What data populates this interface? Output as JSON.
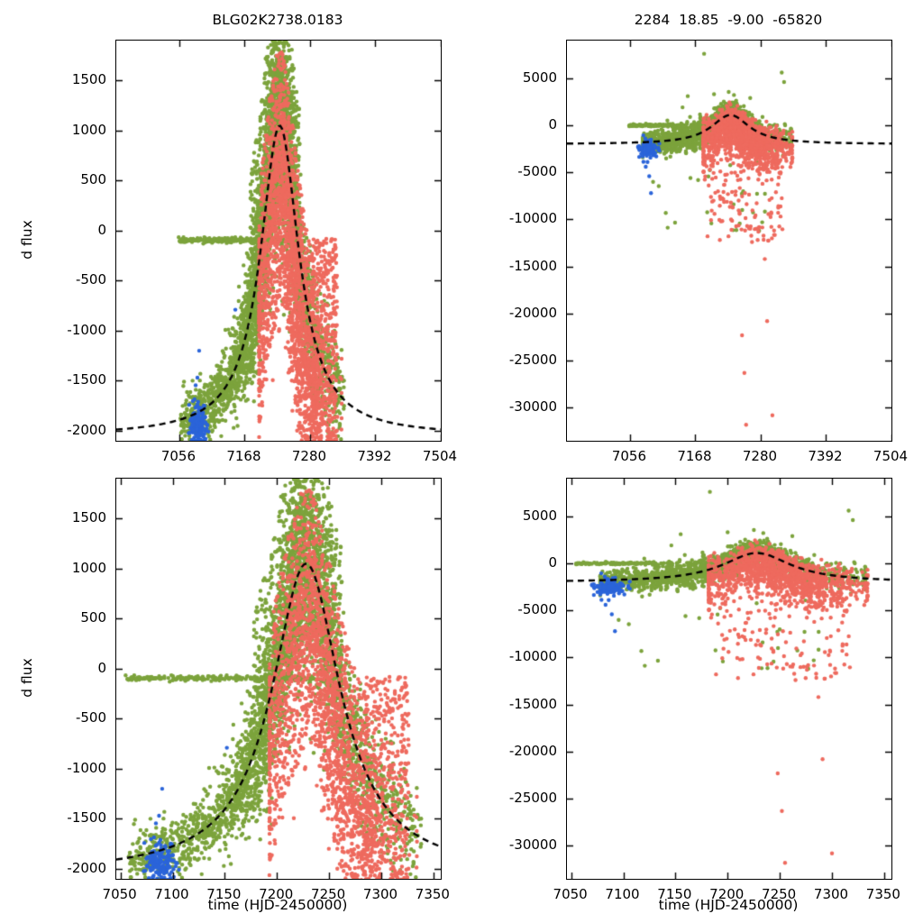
{
  "chart_data": {
    "type": "scatter",
    "titles": {
      "left": "BLG02K2738.0183",
      "right": "2284  18.85  -9.00  -65820"
    },
    "xlabel": "time (HJD-2450000)",
    "ylabel": "d flux",
    "colors": {
      "green": "#7ca33c",
      "red": "#ee6a5e",
      "blue": "#2b64d9",
      "model": "#000000",
      "background": "#ffffff"
    },
    "legend": "none",
    "grid": false,
    "model_curve_style": "black dashed Paczynski-like bump",
    "datasets": {
      "left": {
        "model": {
          "base": -2050,
          "amp": 3100,
          "t0": 7228,
          "w": 40
        },
        "groups": [
          {
            "name": "green-rise",
            "color": "green",
            "n": 450,
            "nights": true,
            "x": {
              "type": "uniform",
              "a": 7058,
              "b": 7176
            },
            "y": {
              "mode": "model",
              "sigma": 130
            }
          },
          {
            "name": "green-peak",
            "color": "green",
            "n": 2400,
            "nights": true,
            "x": {
              "type": "gauss",
              "mu": 7215,
              "sigma": 38,
              "clip": [
                7100,
                7338
              ]
            },
            "y": {
              "mode": "model",
              "sigma": 150,
              "sigma_peak": 420
            }
          },
          {
            "name": "green-columns",
            "color": "green",
            "n": 800,
            "nights": true,
            "x": {
              "type": "uniform",
              "a": 7178,
              "b": 7262
            },
            "y": {
              "mode": "model_uniform",
              "lo": -770,
              "hi": 1430
            }
          },
          {
            "name": "green-late",
            "color": "green",
            "n": 260,
            "nights": true,
            "x": {
              "type": "uniform",
              "a": 7262,
              "b": 7336
            },
            "y": {
              "mode": "model",
              "sigma": 330
            }
          },
          {
            "name": "green-flat-band",
            "color": "green",
            "n": 230,
            "nights": true,
            "x": {
              "type": "uniform",
              "a": 7055,
              "b": 7236
            },
            "y": {
              "mode": "band",
              "c": -95,
              "sigma": 12
            }
          },
          {
            "name": "red-main",
            "color": "red",
            "n": 1500,
            "nights": true,
            "x": {
              "type": "gauss",
              "mu": 7245,
              "sigma": 35,
              "clip": [
                7193,
                7334
              ]
            },
            "y": {
              "mode": "model",
              "sigma": 300,
              "skew": 750
            }
          },
          {
            "name": "red-columns",
            "color": "red",
            "n": 700,
            "nights": true,
            "x": {
              "type": "uniform",
              "a": 7196,
              "b": 7292
            },
            "y": {
              "mode": "model_uniform",
              "lo": -1850,
              "hi": 760
            }
          },
          {
            "name": "red-late-streaks",
            "color": "red",
            "n": 420,
            "nights": true,
            "x": {
              "type": "uniform",
              "a": 7282,
              "b": 7326
            },
            "y": {
              "mode": "uniform",
              "a": -2120,
              "b": -80
            }
          },
          {
            "name": "blue-cluster",
            "color": "blue",
            "n": 170,
            "nights": true,
            "x": {
              "type": "gauss",
              "mu": 7087,
              "sigma": 8,
              "clip": [
                7070,
                7107
              ]
            },
            "y": {
              "mode": "band",
              "c": -1925,
              "sigma": 95
            }
          },
          {
            "name": "blue-strays",
            "color": "blue",
            "y": {
              "mode": "points"
            },
            "pts": [
              [
                7084,
                -1545
              ],
              [
                7087,
                -1470
              ],
              [
                7152,
                -790
              ],
              [
                7090,
                -1200
              ]
            ]
          }
        ]
      },
      "right": {
        "model": {
          "base": -2000,
          "amp": 3100,
          "t0": 7228,
          "w": 40
        },
        "groups": [
          {
            "name": "green-band-main",
            "color": "green",
            "n": 1500,
            "nights": true,
            "x": {
              "type": "gauss",
              "mu": 7205,
              "sigma": 55,
              "clip": [
                7078,
                7332
              ]
            },
            "y": {
              "mode": "model",
              "sigma": 700
            }
          },
          {
            "name": "green-early",
            "color": "green",
            "n": 230,
            "nights": true,
            "x": {
              "type": "uniform",
              "a": 7080,
              "b": 7160
            },
            "y": {
              "mode": "model",
              "sigma": 450
            }
          },
          {
            "name": "green-zero-dash",
            "color": "green",
            "n": 110,
            "nights": true,
            "x": {
              "type": "uniform",
              "a": 7055,
              "b": 7148
            },
            "y": {
              "mode": "band",
              "c": 0,
              "sigma": 60
            }
          },
          {
            "name": "green-low-outliers",
            "color": "green",
            "n": 26,
            "x": {
              "type": "uniform",
              "a": 7090,
              "b": 7320
            },
            "y": {
              "mode": "uniform",
              "a": -12200,
              "b": -3500
            }
          },
          {
            "name": "green-high-outliers",
            "color": "green",
            "y": {
              "mode": "points"
            },
            "pts": [
              [
                7183,
                7600
              ],
              [
                7316,
                5600
              ],
              [
                7200,
                3300
              ],
              [
                7262,
                2900
              ],
              [
                7155,
                3100
              ],
              [
                7320,
                4600
              ]
            ]
          },
          {
            "name": "red-main",
            "color": "red",
            "n": 1300,
            "nights": true,
            "x": {
              "type": "gauss",
              "mu": 7248,
              "sigma": 38,
              "clip": [
                7182,
                7334
              ]
            },
            "y": {
              "mode": "model",
              "sigma": 800,
              "skew": 1600
            }
          },
          {
            "name": "red-deep-streaks",
            "color": "red",
            "n": 140,
            "nights": true,
            "x": {
              "type": "uniform",
              "a": 7186,
              "b": 7318
            },
            "y": {
              "mode": "uniform",
              "a": -12500,
              "b": -3000
            }
          },
          {
            "name": "red-extreme-outliers",
            "color": "red",
            "y": {
              "mode": "points"
            },
            "pts": [
              [
                7248,
                -22300
              ],
              [
                7252,
                -26300
              ],
              [
                7255,
                -31800
              ],
              [
                7287,
                -14200
              ],
              [
                7291,
                -20800
              ],
              [
                7300,
                -30800
              ]
            ]
          },
          {
            "name": "blue-cluster",
            "color": "blue",
            "n": 120,
            "nights": true,
            "x": {
              "type": "gauss",
              "mu": 7087,
              "sigma": 8,
              "clip": [
                7070,
                7106
              ]
            },
            "y": {
              "mode": "band",
              "c": -2500,
              "sigma": 450
            }
          },
          {
            "name": "blue-strays",
            "color": "blue",
            "y": {
              "mode": "points"
            },
            "pts": [
              [
                7083,
                -4400
              ],
              [
                7089,
                -5400
              ],
              [
                7092,
                -7200
              ],
              [
                7086,
                -3900
              ]
            ]
          }
        ]
      }
    },
    "panels": [
      {
        "id": "tl",
        "dataset": "left",
        "xlim": [
          6948,
          7504
        ],
        "ylim": [
          -2100,
          1900
        ],
        "xticks": [
          7056,
          7168,
          7280,
          7392,
          7504
        ],
        "yticks": [
          1500,
          1000,
          500,
          0,
          -500,
          -1000,
          -1500,
          -2000
        ]
      },
      {
        "id": "tr",
        "dataset": "right",
        "xlim": [
          6948,
          7504
        ],
        "ylim": [
          -33500,
          9000
        ],
        "xticks": [
          7056,
          7168,
          7280,
          7392,
          7504
        ],
        "yticks": [
          5000,
          0,
          -5000,
          -10000,
          -15000,
          -20000,
          -25000,
          -30000
        ]
      },
      {
        "id": "bl",
        "dataset": "left",
        "xlim": [
          7046,
          7357
        ],
        "ylim": [
          -2100,
          1900
        ],
        "xticks": [
          7050,
          7100,
          7150,
          7200,
          7250,
          7300,
          7350
        ],
        "yticks": [
          1500,
          1000,
          500,
          0,
          -500,
          -1000,
          -1500,
          -2000
        ]
      },
      {
        "id": "br",
        "dataset": "right",
        "xlim": [
          7046,
          7357
        ],
        "ylim": [
          -33500,
          9000
        ],
        "xticks": [
          7050,
          7100,
          7150,
          7200,
          7250,
          7300,
          7350
        ],
        "yticks": [
          5000,
          0,
          -5000,
          -10000,
          -15000,
          -20000,
          -25000,
          -30000
        ]
      }
    ]
  }
}
